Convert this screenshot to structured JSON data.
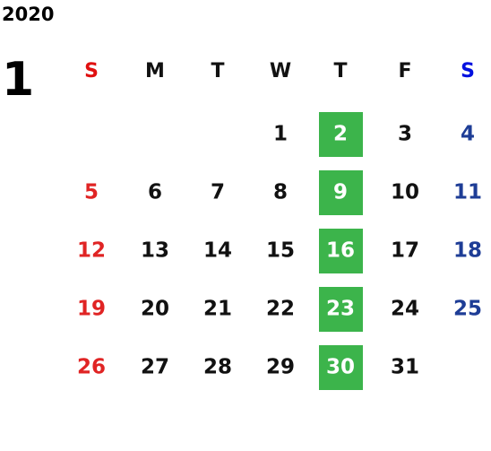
{
  "calendar": {
    "year": "2020",
    "month": "1",
    "weekdays": [
      "S",
      "M",
      "T",
      "W",
      "T",
      "F",
      "S"
    ],
    "weeks": [
      [
        null,
        null,
        null,
        "1",
        "2",
        "3",
        "4"
      ],
      [
        "5",
        "6",
        "7",
        "8",
        "9",
        "10",
        "11"
      ],
      [
        "12",
        "13",
        "14",
        "15",
        "16",
        "17",
        "18"
      ],
      [
        "19",
        "20",
        "21",
        "22",
        "23",
        "24",
        "25"
      ],
      [
        "26",
        "27",
        "28",
        "29",
        "30",
        "31",
        null
      ]
    ],
    "highlighted_weekday": 4,
    "colors": {
      "text": "#111111",
      "sunday_header": "#e01010",
      "saturday_header": "#0010e0",
      "sunday": "#e02424",
      "saturday": "#1e3d96",
      "highlight": "#3cb44b",
      "highlight_text": "#ffffff"
    }
  }
}
